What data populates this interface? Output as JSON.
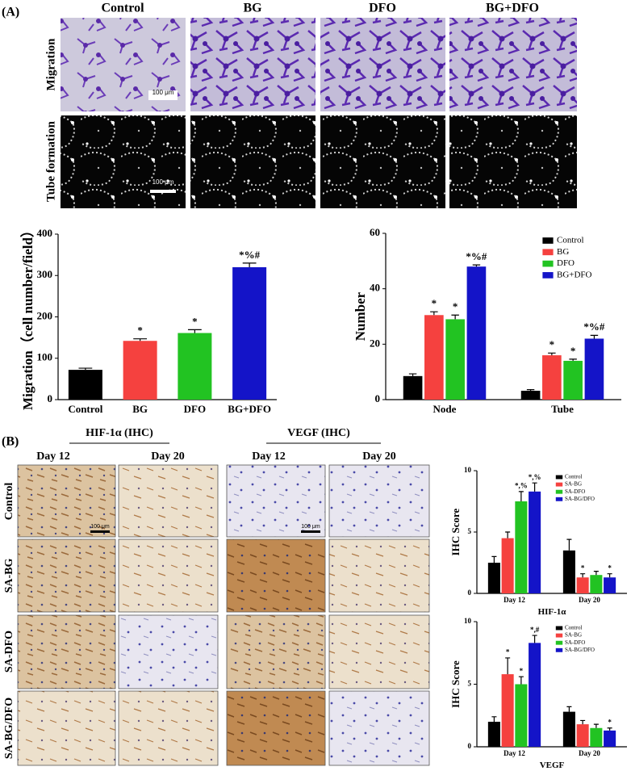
{
  "panel_a": {
    "label": "(A)",
    "columns": [
      "Control",
      "BG",
      "DFO",
      "BG+DFO"
    ],
    "rows": [
      "Migration",
      "Tube formation"
    ],
    "scale_bar": "100 μm"
  },
  "panel_b": {
    "label": "(B)",
    "headers": [
      "HIF-1α (IHC)",
      "VEGF (IHC)"
    ],
    "days": [
      "Day 12",
      "Day 20"
    ],
    "rows": [
      "Control",
      "SA-BG",
      "SA-DFO",
      "SA-BG/DFO"
    ],
    "scale_bar": "100 μm"
  },
  "chart_data": [
    {
      "type": "bar",
      "ylabel": "Migration（cell number/field）",
      "categories": [
        "Control",
        "BG",
        "DFO",
        "BG+DFO"
      ],
      "values": [
        72,
        142,
        161,
        320
      ],
      "errors": [
        4,
        5,
        8,
        10
      ],
      "colors": [
        "#000000",
        "#f5413f",
        "#22c322",
        "#1414c8"
      ],
      "annotations": [
        null,
        "*",
        "*",
        "*%#"
      ],
      "ylim": [
        0,
        400
      ],
      "yticks": [
        0,
        100,
        200,
        300,
        400
      ]
    },
    {
      "type": "grouped-bar",
      "ylabel": "Number",
      "categories": [
        "Node",
        "Tube"
      ],
      "legend": "upper right",
      "series": [
        {
          "name": "Control",
          "color": "#000000",
          "values": [
            8.5,
            3.2
          ],
          "errors": [
            0.8,
            0.4
          ],
          "annotations": [
            null,
            null
          ]
        },
        {
          "name": "BG",
          "color": "#f5413f",
          "values": [
            30.5,
            16
          ],
          "errors": [
            1.2,
            0.8
          ],
          "annotations": [
            "*",
            "*"
          ]
        },
        {
          "name": "DFO",
          "color": "#22c322",
          "values": [
            29,
            14
          ],
          "errors": [
            1.5,
            0.6
          ],
          "annotations": [
            "*",
            "*"
          ]
        },
        {
          "name": "BG+DFO",
          "color": "#1414c8",
          "values": [
            48,
            22
          ],
          "errors": [
            0.6,
            1.2
          ],
          "annotations": [
            "*%#",
            "*%#"
          ]
        }
      ],
      "ylim": [
        0,
        60
      ],
      "yticks": [
        0,
        20,
        40,
        60
      ]
    },
    {
      "type": "grouped-bar",
      "ylabel": "IHC Score",
      "xlabel": "HIF-1α",
      "categories": [
        "Day 12",
        "Day 20"
      ],
      "legend": "upper right",
      "series": [
        {
          "name": "Control",
          "color": "#000000",
          "values": [
            2.5,
            3.5
          ],
          "errors": [
            0.5,
            0.9
          ],
          "annotations": [
            null,
            null
          ]
        },
        {
          "name": "SA-BG",
          "color": "#f5413f",
          "values": [
            4.5,
            1.3
          ],
          "errors": [
            0.5,
            0.3
          ],
          "annotations": [
            null,
            "*"
          ]
        },
        {
          "name": "SA-DFO",
          "color": "#22c322",
          "values": [
            7.5,
            1.5
          ],
          "errors": [
            0.8,
            0.3
          ],
          "annotations": [
            "*,%",
            null
          ]
        },
        {
          "name": "SA-BG/DFO",
          "color": "#1414c8",
          "values": [
            8.3,
            1.3
          ],
          "errors": [
            0.7,
            0.3
          ],
          "annotations": [
            "*,%",
            "*"
          ]
        }
      ],
      "ylim": [
        0,
        10
      ],
      "yticks": [
        0,
        5,
        10
      ]
    },
    {
      "type": "grouped-bar",
      "ylabel": "IHC Score",
      "xlabel": "VEGF",
      "categories": [
        "Day 12",
        "Day 20"
      ],
      "legend": "upper right",
      "series": [
        {
          "name": "Control",
          "color": "#000000",
          "values": [
            2,
            2.8
          ],
          "errors": [
            0.4,
            0.4
          ],
          "annotations": [
            null,
            null
          ]
        },
        {
          "name": "SA-BG",
          "color": "#f5413f",
          "values": [
            5.8,
            1.8
          ],
          "errors": [
            1.3,
            0.3
          ],
          "annotations": [
            "*",
            null
          ]
        },
        {
          "name": "SA-DFO",
          "color": "#22c322",
          "values": [
            5,
            1.5
          ],
          "errors": [
            0.6,
            0.3
          ],
          "annotations": [
            "*",
            null
          ]
        },
        {
          "name": "SA-BG/DFO",
          "color": "#1414c8",
          "values": [
            8.3,
            1.3
          ],
          "errors": [
            0.6,
            0.2
          ],
          "annotations": [
            "*,#",
            "*"
          ]
        }
      ],
      "ylim": [
        0,
        10
      ],
      "yticks": [
        0,
        5,
        10
      ]
    }
  ]
}
